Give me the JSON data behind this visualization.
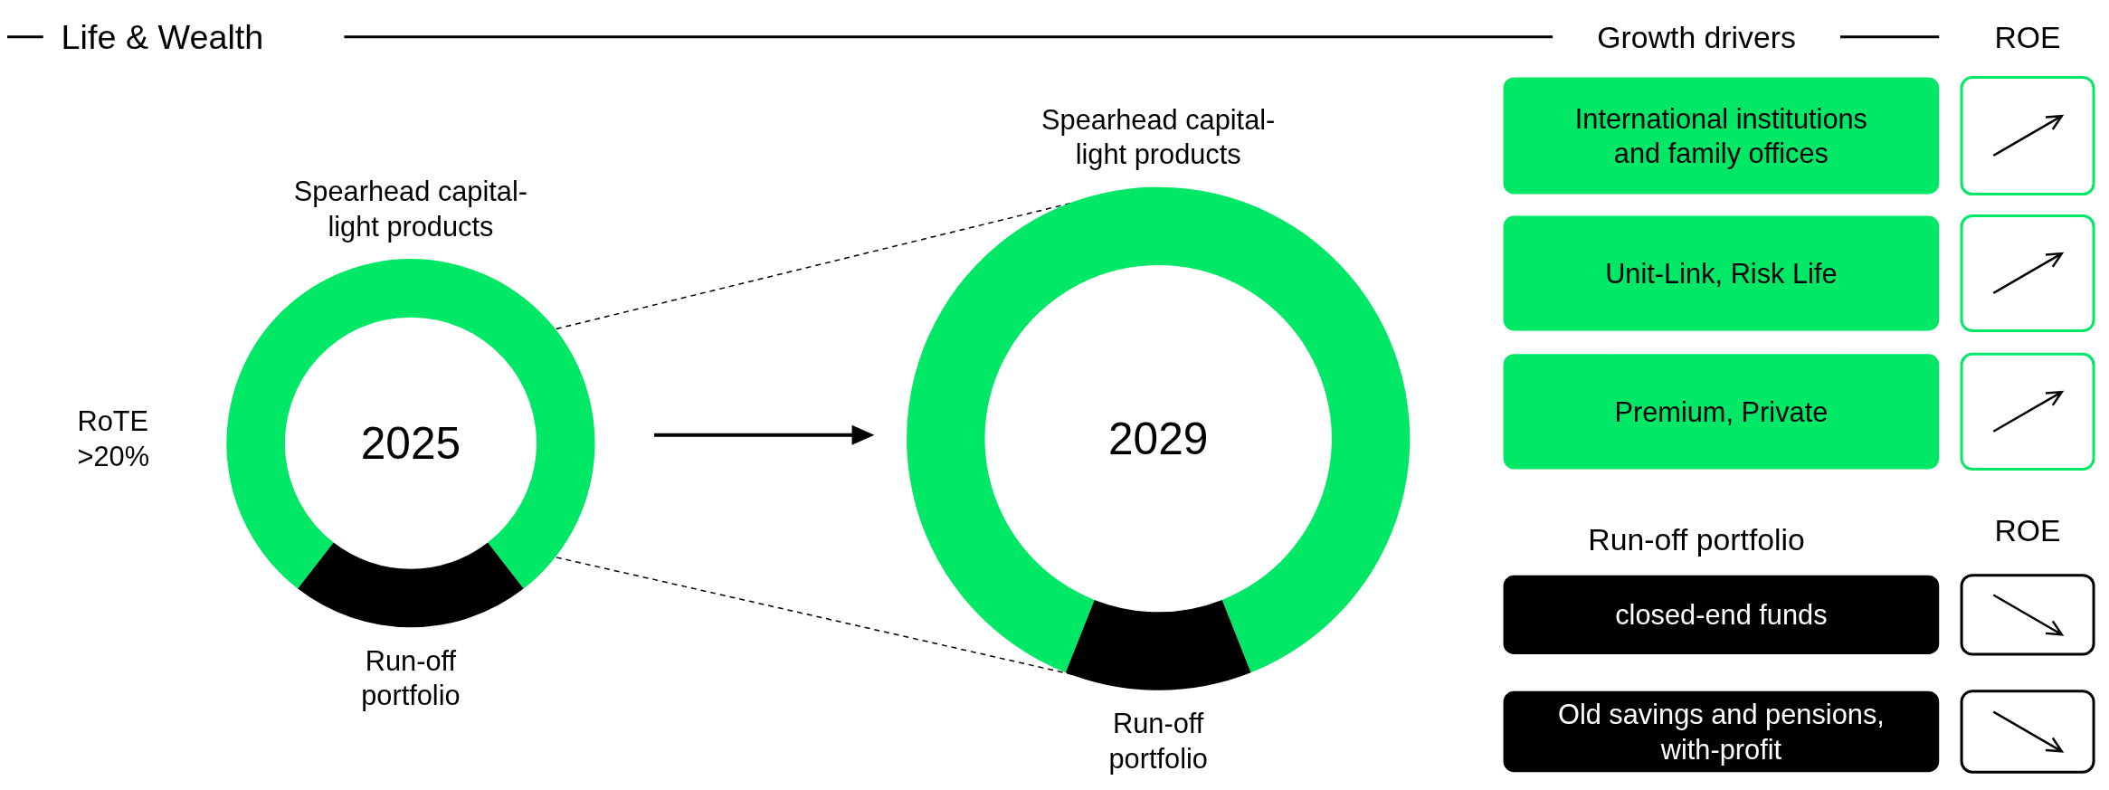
{
  "chart_data": [
    {
      "type": "donut",
      "title": "Life & Wealth",
      "categories": [
        "Spearhead capital-light products",
        "Run-off portfolio"
      ],
      "values": [
        79,
        21
      ],
      "colors": [
        "#00e865",
        "#000000"
      ],
      "annotations": [
        "2025",
        "RoTE >20%"
      ]
    },
    {
      "type": "donut",
      "categories": [
        "Spearhead capital-light products",
        "Run-off portfolio"
      ],
      "values": [
        88,
        12
      ],
      "colors": [
        "#00e865",
        "#000000"
      ],
      "annotations": [
        "2029"
      ]
    },
    {
      "type": "other",
      "title": "Growth drivers",
      "annotations": [
        "ROE",
        "International institutions and family offices",
        "Unit-Link, Risk Life",
        "Premium, Private",
        "Run-off portfolio",
        "ROE",
        "closed-end funds",
        "Old savings and pensions, with-profit"
      ]
    }
  ]
}
